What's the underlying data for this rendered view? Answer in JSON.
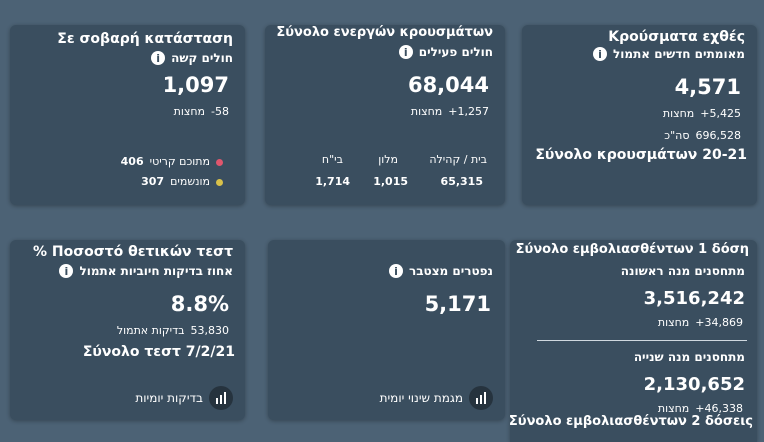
{
  "cards": [
    {
      "title": "Σε σοβαρή κατάσταση",
      "subtitle": "חולים קשה",
      "value": "1,097",
      "change": "-58",
      "change_label": "מחצות",
      "breakdown": [
        {
          "label": "מתוכם קריטי",
          "value": "406"
        },
        {
          "label": "מונשמים",
          "value": "307"
        }
      ]
    },
    {
      "title": "Σύνολο ενεργών κρουσμάτων",
      "subtitle": "חולים פעילים",
      "value": "68,044",
      "change": "+1,257",
      "change_label": "מחצות",
      "columns": [
        {
          "label": "בית / קהילה",
          "value": "65,315"
        },
        {
          "label": "מלון",
          "value": "1,015"
        },
        {
          "label": "בי\"ח",
          "value": "1,714"
        }
      ]
    },
    {
      "title": "Κρούσματα εχθές",
      "subtitle": "מאומתים חדשים אתמול",
      "value": "4,571",
      "change": "+5,425",
      "change_label": "מחצות",
      "total": "696,528",
      "total_label": "סה\"כ",
      "footer": "Σύνολο κρουσμάτων 20-21"
    },
    {
      "title": "Ποσοστό θετικών τεστ %",
      "subtitle": "אחוז בדיקות חיוביות אתמול",
      "value": "8.8%",
      "change": "53,830",
      "change_label": "בדיקות אתמול",
      "footer": "Σύνολο τεστ 7/2/21",
      "button": "בדיקות יומיות"
    },
    {
      "subtitle": "נפטרים מצטבר",
      "value": "5,171",
      "button": "מגמת שינוי יומית"
    },
    {
      "title": "Σύνολο εμβολιασθέντων 1 δόση",
      "subtitle": "מתחסנים מנה ראשונה",
      "value": "3,516,242",
      "change": "+34,869",
      "change_label": "מחצות",
      "subtitle2": "מתחסנים מנה שנייה",
      "value2": "2,130,652",
      "change2": "+46,338",
      "change2_label": "מחצות",
      "footer": "Σύνολο εμβολιασθέντων 2 δόσεις"
    }
  ]
}
